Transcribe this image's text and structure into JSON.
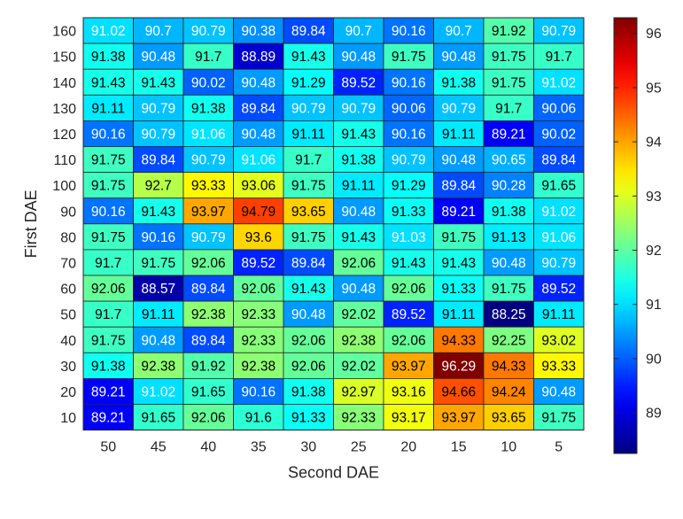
{
  "chart_data": {
    "type": "heatmap",
    "title": "",
    "xlabel": "Second DAE",
    "ylabel": "First DAE",
    "x_categories": [
      "50",
      "45",
      "40",
      "35",
      "30",
      "25",
      "20",
      "15",
      "10",
      "5"
    ],
    "y_categories": [
      "160",
      "150",
      "140",
      "130",
      "120",
      "110",
      "100",
      "90",
      "80",
      "70",
      "60",
      "50",
      "40",
      "30",
      "20",
      "10"
    ],
    "values": [
      [
        "91.02",
        "90.7",
        "90.79",
        "90.38",
        "89.84",
        "90.7",
        "90.16",
        "90.7",
        "91.92",
        "90.79"
      ],
      [
        "91.38",
        "90.48",
        "91.7",
        "88.89",
        "91.43",
        "90.48",
        "91.75",
        "90.48",
        "91.75",
        "91.7"
      ],
      [
        "91.43",
        "91.43",
        "90.02",
        "90.48",
        "91.29",
        "89.52",
        "90.16",
        "91.38",
        "91.75",
        "91.02"
      ],
      [
        "91.11",
        "90.79",
        "91.38",
        "89.84",
        "90.79",
        "90.79",
        "90.06",
        "90.79",
        "91.7",
        "90.06"
      ],
      [
        "90.16",
        "90.79",
        "91.06",
        "90.48",
        "91.11",
        "91.43",
        "90.16",
        "91.11",
        "89.21",
        "90.02"
      ],
      [
        "91.75",
        "89.84",
        "90.79",
        "91.06",
        "91.7",
        "91.38",
        "90.79",
        "90.48",
        "90.65",
        "89.84"
      ],
      [
        "91.75",
        "92.7",
        "93.33",
        "93.06",
        "91.75",
        "91.11",
        "91.29",
        "89.84",
        "90.28",
        "91.65"
      ],
      [
        "90.16",
        "91.43",
        "93.97",
        "94.79",
        "93.65",
        "90.48",
        "91.33",
        "89.21",
        "91.38",
        "91.02"
      ],
      [
        "91.75",
        "90.16",
        "90.79",
        "93.6",
        "91.75",
        "91.43",
        "91.03",
        "91.75",
        "91.13",
        "91.06"
      ],
      [
        "91.7",
        "91.75",
        "92.06",
        "89.52",
        "89.84",
        "92.06",
        "91.43",
        "91.43",
        "90.48",
        "90.79"
      ],
      [
        "92.06",
        "88.57",
        "89.84",
        "92.06",
        "91.43",
        "90.48",
        "92.06",
        "91.33",
        "91.75",
        "89.52"
      ],
      [
        "91.7",
        "91.11",
        "92.38",
        "92.33",
        "90.48",
        "92.02",
        "89.52",
        "91.11",
        "88.25",
        "91.11"
      ],
      [
        "91.75",
        "90.48",
        "89.84",
        "92.33",
        "92.06",
        "92.38",
        "92.06",
        "94.33",
        "92.25",
        "93.02"
      ],
      [
        "91.38",
        "92.38",
        "91.92",
        "92.38",
        "92.06",
        "92.02",
        "93.97",
        "96.29",
        "94.33",
        "93.33"
      ],
      [
        "89.21",
        "91.02",
        "91.65",
        "90.16",
        "91.38",
        "92.97",
        "93.16",
        "94.66",
        "94.24",
        "90.48"
      ],
      [
        "89.21",
        "91.65",
        "92.06",
        "91.6",
        "91.33",
        "92.33",
        "93.17",
        "93.97",
        "93.65",
        "91.75"
      ]
    ],
    "colorbar": {
      "colormap": "jet",
      "range": [
        88.25,
        96.29
      ],
      "ticks": [
        "89",
        "90",
        "91",
        "92",
        "93",
        "94",
        "95",
        "96"
      ]
    },
    "grid": true,
    "legend": "colorbar-right"
  }
}
